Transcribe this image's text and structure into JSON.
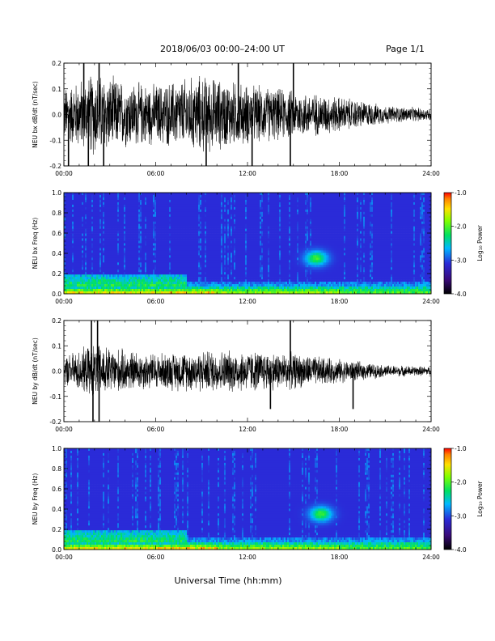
{
  "header": {
    "title": "2018/06/03  00:00–24:00 UT",
    "page": "Page 1/1"
  },
  "xlabel": "Universal Time (hh:mm)",
  "x_ticks": [
    "00:00",
    "06:00",
    "12:00",
    "18:00",
    "24:00"
  ],
  "chart_data": [
    {
      "type": "line",
      "ylabel": "NEU bx dB/dt (nT/sec)",
      "y_ticks": [
        "0.2",
        "0.1",
        "0.0",
        "-0.1",
        "-0.2"
      ],
      "ylim": [
        -0.2,
        0.2
      ],
      "xlim_hours": [
        0,
        24
      ],
      "envelope": [
        {
          "t": 0,
          "amp": 0.09
        },
        {
          "t": 2,
          "amp": 0.14
        },
        {
          "t": 4,
          "amp": 0.11
        },
        {
          "t": 6,
          "amp": 0.1
        },
        {
          "t": 9,
          "amp": 0.13
        },
        {
          "t": 12,
          "amp": 0.1
        },
        {
          "t": 15,
          "amp": 0.08
        },
        {
          "t": 18,
          "amp": 0.06
        },
        {
          "t": 21,
          "amp": 0.03
        },
        {
          "t": 24,
          "amp": 0.02
        }
      ],
      "spikes": [
        {
          "t": 0.3,
          "v": -0.2
        },
        {
          "t": 1.3,
          "v": 0.2
        },
        {
          "t": 1.6,
          "v": -0.2
        },
        {
          "t": 2.3,
          "v": 0.2
        },
        {
          "t": 2.6,
          "v": -0.2
        },
        {
          "t": 9.3,
          "v": -0.2
        },
        {
          "t": 11.4,
          "v": 0.2
        },
        {
          "t": 12.3,
          "v": -0.2
        },
        {
          "t": 14.8,
          "v": -0.2
        },
        {
          "t": 15.0,
          "v": 0.2
        }
      ]
    },
    {
      "type": "heatmap",
      "ylabel": "NEU bx Freq (Hz)",
      "y_ticks": [
        "1.0",
        "0.8",
        "0.6",
        "0.4",
        "0.2",
        "0.0"
      ],
      "ylim": [
        0.0,
        1.0
      ],
      "xlim_hours": [
        0,
        24
      ],
      "colorbar": {
        "label": "Log₁₀ Power",
        "ticks": [
          "-1.0",
          "-2.0",
          "-3.0",
          "-4.0"
        ],
        "range": [
          -4.0,
          -1.0
        ]
      },
      "features": [
        {
          "t": 16.5,
          "f": 0.35,
          "note": "enhanced power blob"
        }
      ]
    },
    {
      "type": "line",
      "ylabel": "NEU by dB/dt (nT/sec)",
      "y_ticks": [
        "0.2",
        "0.1",
        "0.0",
        "-0.1",
        "-0.2"
      ],
      "ylim": [
        -0.2,
        0.2
      ],
      "xlim_hours": [
        0,
        24
      ],
      "envelope": [
        {
          "t": 0,
          "amp": 0.05
        },
        {
          "t": 2,
          "amp": 0.09
        },
        {
          "t": 4,
          "amp": 0.07
        },
        {
          "t": 6,
          "amp": 0.06
        },
        {
          "t": 9,
          "amp": 0.07
        },
        {
          "t": 12,
          "amp": 0.07
        },
        {
          "t": 15,
          "amp": 0.06
        },
        {
          "t": 18,
          "amp": 0.04
        },
        {
          "t": 21,
          "amp": 0.02
        },
        {
          "t": 24,
          "amp": 0.015
        }
      ],
      "spikes": [
        {
          "t": 1.8,
          "v": 0.2
        },
        {
          "t": 1.9,
          "v": -0.2
        },
        {
          "t": 2.2,
          "v": 0.2
        },
        {
          "t": 2.3,
          "v": -0.2
        },
        {
          "t": 14.8,
          "v": 0.2
        },
        {
          "t": 13.5,
          "v": -0.15
        },
        {
          "t": 18.9,
          "v": -0.15
        }
      ]
    },
    {
      "type": "heatmap",
      "ylabel": "NEU by Freq (Hz)",
      "y_ticks": [
        "1.0",
        "0.8",
        "0.6",
        "0.4",
        "0.2",
        "0.0"
      ],
      "ylim": [
        0.0,
        1.0
      ],
      "xlim_hours": [
        0,
        24
      ],
      "colorbar": {
        "label": "Log₁₀ Power",
        "ticks": [
          "-1.0",
          "-2.0",
          "-3.0",
          "-4.0"
        ],
        "range": [
          -4.0,
          -1.0
        ]
      },
      "features": [
        {
          "t": 16.8,
          "f": 0.35,
          "note": "enhanced power blob"
        }
      ]
    }
  ]
}
